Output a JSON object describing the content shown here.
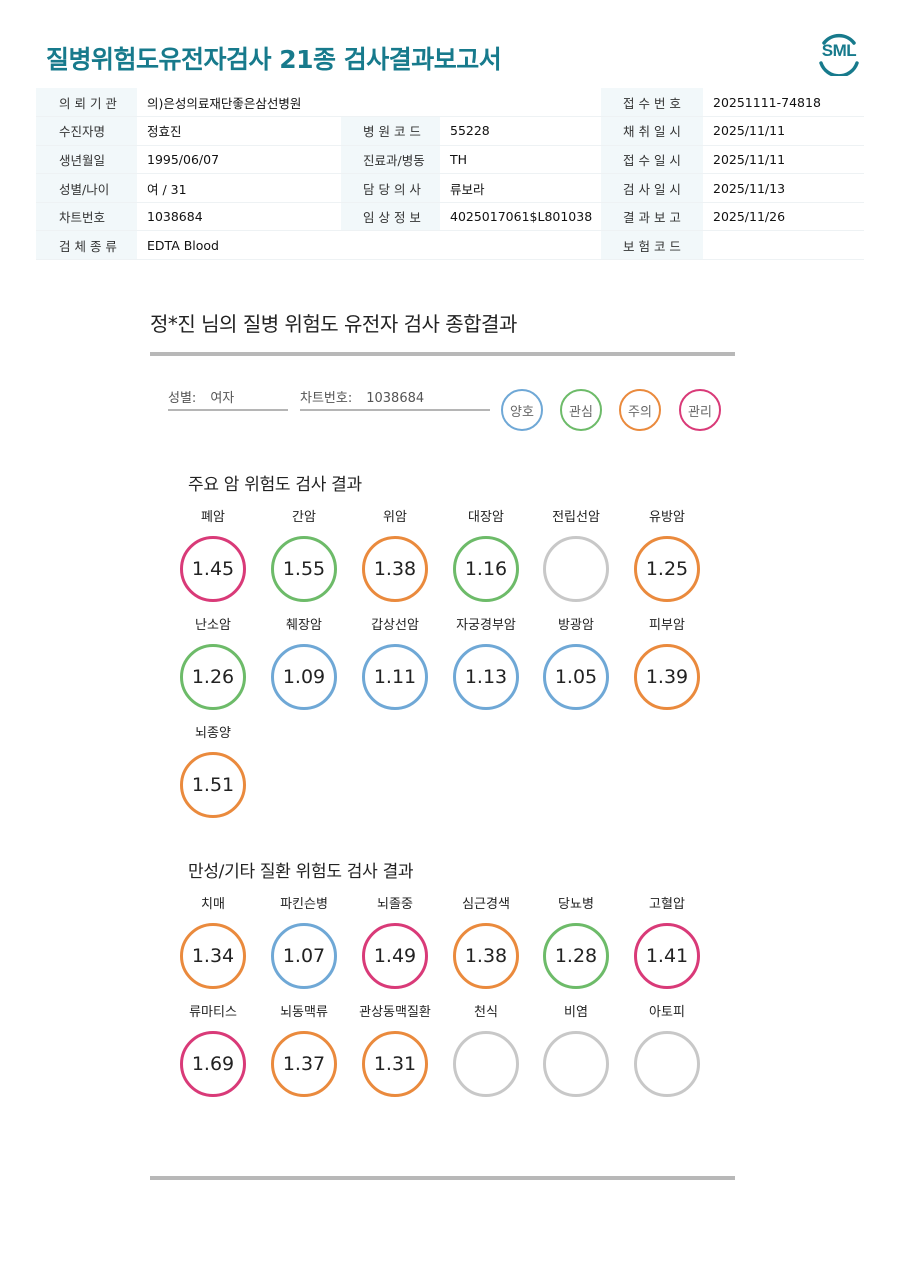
{
  "report": {
    "title": "질병위험도유전자검사 21종 검사결과보고서",
    "logo_text": "SML"
  },
  "info": {
    "r1": {
      "l1": "의 뢰 기 관",
      "v1": "의)은성의료재단좋은삼선병원",
      "l3": "접 수 번 호",
      "v3": "20251111-74818"
    },
    "r2": {
      "l1": "수진자명",
      "v1": "정효진",
      "l2": "병 원 코 드",
      "v2": "55228",
      "l3": "채 취 일 시",
      "v3": "2025/11/11"
    },
    "r3": {
      "l1": "생년월일",
      "v1": "1995/06/07",
      "l2": "진료과/병동",
      "v2": "TH",
      "l3": "접 수 일 시",
      "v3": "2025/11/11"
    },
    "r4": {
      "l1": "성별/나이",
      "v1": "여 / 31",
      "l2": "담 당 의 사",
      "v2": "류보라",
      "l3": "검 사 일 시",
      "v3": "2025/11/13"
    },
    "r5": {
      "l1": "차트번호",
      "v1": "1038684",
      "l2": "임 상 정 보",
      "v2": "4025017061$L801038",
      "l3": "결 과 보 고",
      "v3": "2025/11/26"
    },
    "r6": {
      "l1": "검 체 종 류",
      "v1": "EDTA Blood",
      "l3": "보 험 코 드",
      "v3": ""
    }
  },
  "summary": {
    "title": "정*진 님의 질병 위험도 유전자 검사 종합결과",
    "sex_label": "성별:",
    "sex_value": "여자",
    "chart_label": "차트번호:",
    "chart_value": "1038684"
  },
  "legend": {
    "good": {
      "label": "양호",
      "color": "#6fa8d6"
    },
    "interest": {
      "label": "관심",
      "color": "#6dbb69"
    },
    "caution": {
      "label": "주의",
      "color": "#ea8a3d"
    },
    "manage": {
      "label": "관리",
      "color": "#d93a78"
    },
    "none": {
      "color": "#c8c8c8"
    }
  },
  "cancer": {
    "title": "주요 암 위험도 검사 결과",
    "items": [
      {
        "name": "폐암",
        "value": "1.45",
        "level": "manage"
      },
      {
        "name": "간암",
        "value": "1.55",
        "level": "interest"
      },
      {
        "name": "위암",
        "value": "1.38",
        "level": "caution"
      },
      {
        "name": "대장암",
        "value": "1.16",
        "level": "interest"
      },
      {
        "name": "전립선암",
        "value": "",
        "level": "none"
      },
      {
        "name": "유방암",
        "value": "1.25",
        "level": "caution"
      },
      {
        "name": "난소암",
        "value": "1.26",
        "level": "interest"
      },
      {
        "name": "췌장암",
        "value": "1.09",
        "level": "good"
      },
      {
        "name": "갑상선암",
        "value": "1.11",
        "level": "good"
      },
      {
        "name": "자궁경부암",
        "value": "1.13",
        "level": "good"
      },
      {
        "name": "방광암",
        "value": "1.05",
        "level": "good"
      },
      {
        "name": "피부암",
        "value": "1.39",
        "level": "caution"
      },
      {
        "name": "뇌종양",
        "value": "1.51",
        "level": "caution"
      }
    ]
  },
  "chronic": {
    "title": "만성/기타 질환 위험도 검사 결과",
    "items": [
      {
        "name": "치매",
        "value": "1.34",
        "level": "caution"
      },
      {
        "name": "파킨슨병",
        "value": "1.07",
        "level": "good"
      },
      {
        "name": "뇌졸중",
        "value": "1.49",
        "level": "manage"
      },
      {
        "name": "심근경색",
        "value": "1.38",
        "level": "caution"
      },
      {
        "name": "당뇨병",
        "value": "1.28",
        "level": "interest"
      },
      {
        "name": "고혈압",
        "value": "1.41",
        "level": "manage"
      },
      {
        "name": "류마티스",
        "value": "1.69",
        "level": "manage"
      },
      {
        "name": "뇌동맥류",
        "value": "1.37",
        "level": "caution"
      },
      {
        "name": "관상동맥질환",
        "value": "1.31",
        "level": "caution"
      },
      {
        "name": "천식",
        "value": "",
        "level": "none"
      },
      {
        "name": "비염",
        "value": "",
        "level": "none"
      },
      {
        "name": "아토피",
        "value": "",
        "level": "none"
      }
    ]
  }
}
